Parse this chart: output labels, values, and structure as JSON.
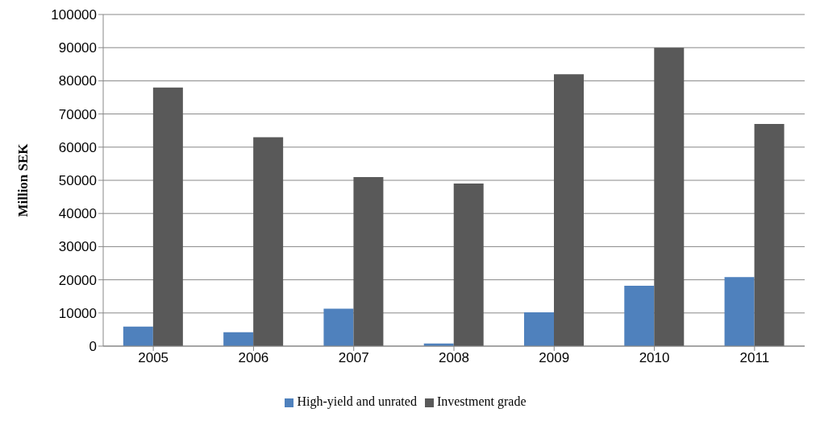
{
  "chart_data": {
    "type": "bar",
    "ylabel": "Million SEK",
    "categories": [
      "2005",
      "2006",
      "2007",
      "2008",
      "2009",
      "2010",
      "2011"
    ],
    "series": [
      {
        "name": "High-yield and unrated",
        "color": "#4f81bd",
        "values": [
          5900,
          4200,
          11300,
          800,
          10200,
          18200,
          20800
        ]
      },
      {
        "name": "Investment grade",
        "color": "#595959",
        "values": [
          78000,
          63000,
          51000,
          49000,
          82000,
          90000,
          67000
        ]
      }
    ],
    "ylim": [
      0,
      100000
    ],
    "yticks": [
      0,
      10000,
      20000,
      30000,
      40000,
      50000,
      60000,
      70000,
      80000,
      90000,
      100000
    ],
    "grid": "y",
    "legend": "bottom"
  }
}
